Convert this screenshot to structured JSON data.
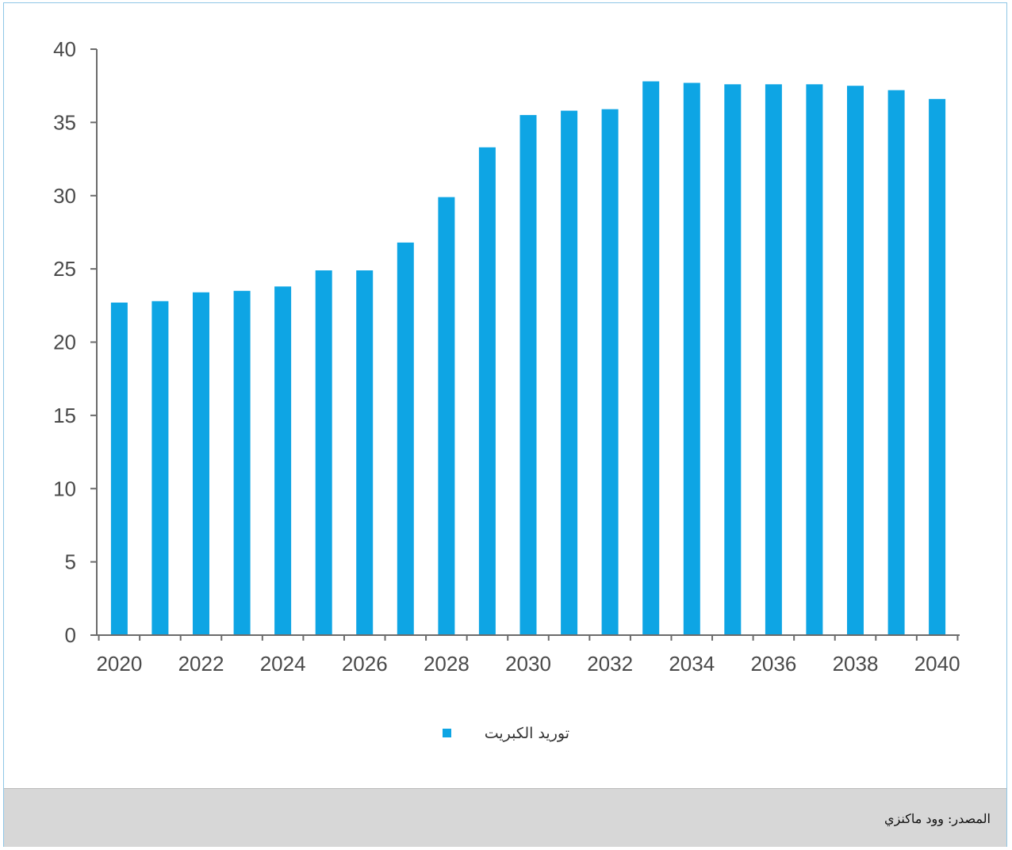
{
  "chart_data": {
    "type": "bar",
    "categories": [
      "2020",
      "2021",
      "2022",
      "2023",
      "2024",
      "2025",
      "2026",
      "2027",
      "2028",
      "2029",
      "2030",
      "2031",
      "2032",
      "2033",
      "2034",
      "2035",
      "2036",
      "2037",
      "2038",
      "2039",
      "2040"
    ],
    "series": [
      {
        "name": "توريد الكبريت",
        "color": "#0ea5e4",
        "values": [
          22.7,
          22.8,
          23.4,
          23.5,
          23.8,
          24.9,
          24.9,
          26.8,
          29.9,
          33.3,
          35.5,
          35.8,
          35.9,
          37.8,
          37.7,
          37.6,
          37.6,
          37.6,
          37.5,
          37.2,
          36.6
        ]
      }
    ],
    "ylim": [
      0,
      40
    ],
    "yticks": [
      0,
      5,
      10,
      15,
      20,
      25,
      30,
      35,
      40
    ],
    "xtick_labels": [
      "2020",
      "2022",
      "2024",
      "2026",
      "2028",
      "2030",
      "2032",
      "2034",
      "2036",
      "2038",
      "2040"
    ],
    "legend_position": "bottom-center",
    "grid": false,
    "title": "",
    "xlabel": "",
    "ylabel": ""
  },
  "source": {
    "text": "المصدر: وود ماكنزي"
  }
}
